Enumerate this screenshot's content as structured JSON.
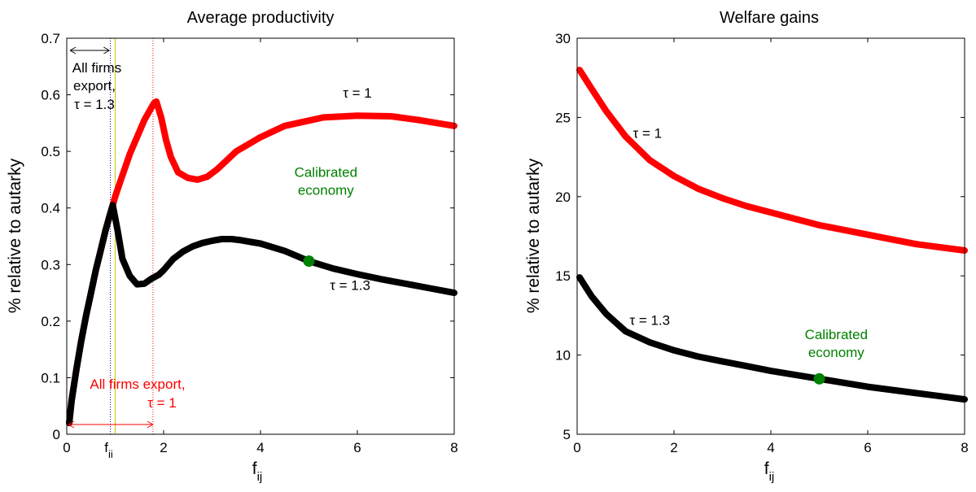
{
  "colors": {
    "tau1": "#ff0000",
    "tau13": "#000000",
    "calibrated": "#008000",
    "fii_line": "#00007f",
    "green_line": "#c8c800"
  },
  "chart_data": [
    {
      "type": "line",
      "title": "Average productivity",
      "xlabel": "f",
      "xlabel_sub": "ij",
      "ylabel": "% relative to autarky",
      "xlim": [
        0,
        8
      ],
      "ylim": [
        0,
        0.7
      ],
      "xticks": [
        "0",
        "2",
        "4",
        "6",
        "8"
      ],
      "yticks": [
        "0",
        "0.1",
        "0.2",
        "0.3",
        "0.4",
        "0.5",
        "0.6",
        "0.7"
      ],
      "grid": false,
      "series": [
        {
          "name": "τ = 1",
          "color": "#ff0000",
          "x": [
            0.05,
            0.1,
            0.2,
            0.3,
            0.4,
            0.5,
            0.6,
            0.7,
            0.8,
            0.9,
            1.0,
            1.1,
            1.2,
            1.3,
            1.4,
            1.5,
            1.6,
            1.7,
            1.8,
            1.85,
            1.95,
            2.05,
            2.15,
            2.3,
            2.5,
            2.7,
            2.9,
            3.1,
            3.3,
            3.5,
            3.8,
            4.0,
            4.5,
            5.3,
            6.0,
            6.7,
            7.3,
            8.0
          ],
          "y": [
            0.02,
            0.06,
            0.115,
            0.165,
            0.21,
            0.25,
            0.29,
            0.325,
            0.36,
            0.39,
            0.42,
            0.445,
            0.47,
            0.495,
            0.515,
            0.535,
            0.555,
            0.57,
            0.585,
            0.588,
            0.56,
            0.52,
            0.49,
            0.463,
            0.453,
            0.45,
            0.455,
            0.468,
            0.484,
            0.5,
            0.515,
            0.525,
            0.545,
            0.56,
            0.563,
            0.562,
            0.555,
            0.545
          ]
        },
        {
          "name": "τ = 1.3",
          "color": "#000000",
          "x": [
            0.05,
            0.1,
            0.2,
            0.3,
            0.4,
            0.5,
            0.6,
            0.7,
            0.8,
            0.88,
            0.95,
            1.05,
            1.15,
            1.3,
            1.45,
            1.6,
            1.75,
            1.9,
            2.0,
            2.2,
            2.4,
            2.6,
            2.8,
            3.0,
            3.2,
            3.4,
            3.6,
            3.8,
            4.0,
            4.5,
            5.0,
            5.5,
            6.0,
            6.5,
            7.0,
            7.5,
            8.0
          ],
          "y": [
            0.02,
            0.06,
            0.115,
            0.165,
            0.21,
            0.25,
            0.29,
            0.325,
            0.36,
            0.385,
            0.405,
            0.36,
            0.31,
            0.28,
            0.265,
            0.266,
            0.275,
            0.282,
            0.29,
            0.31,
            0.323,
            0.332,
            0.338,
            0.342,
            0.345,
            0.345,
            0.343,
            0.34,
            0.337,
            0.324,
            0.306,
            0.293,
            0.283,
            0.274,
            0.266,
            0.258,
            0.25
          ]
        }
      ],
      "series_labels": [
        {
          "text": "τ = 1",
          "x": 6.0,
          "y": 0.595
        },
        {
          "text": "τ = 1.3",
          "x": 5.85,
          "y": 0.255
        }
      ],
      "vertical_lines": [
        {
          "x": 0.9,
          "color": "#00007f",
          "style": "dotted"
        },
        {
          "x": 1.0,
          "color": "#c8c800",
          "style": "solid"
        },
        {
          "x": 1.78,
          "color": "#ff0000",
          "style": "dotted"
        }
      ],
      "special_tick": {
        "label": "f",
        "sub": "ii",
        "x": 0.9
      },
      "calibrated_point": {
        "x": 5.0,
        "y": 0.306,
        "label": "Calibrated economy",
        "line1": "Calibrated",
        "line2": "economy"
      },
      "annotations": {
        "black_lines": [
          "All firms",
          "export,",
          "τ = 1.3"
        ],
        "red_lines": [
          "All firms export,",
          "τ = 1"
        ]
      }
    },
    {
      "type": "line",
      "title": "Welfare gains",
      "xlabel": "f",
      "xlabel_sub": "ij",
      "ylabel": "% relative to autarky",
      "xlim": [
        0,
        8
      ],
      "ylim": [
        5,
        30
      ],
      "xticks": [
        "0",
        "2",
        "4",
        "6",
        "8"
      ],
      "yticks": [
        "5",
        "10",
        "15",
        "20",
        "25",
        "30"
      ],
      "grid": false,
      "series": [
        {
          "name": "τ = 1",
          "color": "#ff0000",
          "x": [
            0.05,
            0.3,
            0.6,
            1.0,
            1.5,
            2.0,
            2.5,
            3.0,
            3.5,
            4.0,
            4.5,
            5.0,
            5.5,
            6.0,
            6.5,
            7.0,
            7.5,
            8.0
          ],
          "y": [
            28.0,
            26.8,
            25.4,
            23.8,
            22.3,
            21.3,
            20.5,
            19.9,
            19.4,
            19.0,
            18.6,
            18.2,
            17.9,
            17.6,
            17.3,
            17.0,
            16.8,
            16.6
          ],
          "label": "τ = 1",
          "label_x": 1.45,
          "label_y": 23.7
        },
        {
          "name": "τ = 1.3",
          "color": "#000000",
          "x": [
            0.05,
            0.3,
            0.6,
            1.0,
            1.5,
            2.0,
            2.5,
            3.0,
            3.5,
            4.0,
            4.5,
            5.0,
            5.5,
            6.0,
            6.5,
            7.0,
            7.5,
            8.0
          ],
          "y": [
            14.9,
            13.7,
            12.6,
            11.5,
            10.8,
            10.3,
            9.9,
            9.6,
            9.3,
            9.0,
            8.75,
            8.5,
            8.25,
            8.0,
            7.8,
            7.6,
            7.4,
            7.2
          ],
          "label": "τ = 1.3",
          "label_x": 1.5,
          "label_y": 11.9
        }
      ],
      "calibrated_point": {
        "x": 5.0,
        "y": 8.5,
        "label": "Calibrated economy",
        "line1": "Calibrated",
        "line2": "economy"
      }
    }
  ]
}
